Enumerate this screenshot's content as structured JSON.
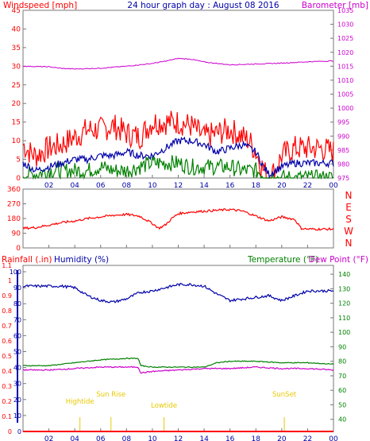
{
  "page_title": "24 hour graph day : August 08 2016",
  "colors": {
    "red": "#ff0000",
    "blue": "#0000aa",
    "green": "#008000",
    "magenta": "#cc00cc",
    "gold": "#e8c800",
    "frame": "#777777"
  },
  "time_ticks": [
    "02",
    "04",
    "06",
    "08",
    "10",
    "12",
    "14",
    "16",
    "18",
    "20",
    "22",
    "00"
  ],
  "chart_data": [
    {
      "type": "line",
      "xlim": [
        0,
        24
      ],
      "left_axis": {
        "label": "Windspeed [mph]",
        "ylim": [
          0,
          45
        ],
        "ticks": [
          "0",
          "5",
          "10",
          "15",
          "20",
          "25",
          "30",
          "35",
          "40",
          "45"
        ]
      },
      "right_axis": {
        "label": "Barometer [mb]",
        "ylim": [
          975,
          1035
        ],
        "ticks": [
          "975",
          "980",
          "985",
          "990",
          "995",
          "1000",
          "1005",
          "1010",
          "1015",
          "1020",
          "1025",
          "1030",
          "1035"
        ]
      },
      "series": [
        {
          "color": "#ff0000",
          "axis": "left",
          "jitter": 3.5,
          "floor": 0,
          "x": [
            0,
            0.5,
            1,
            2,
            3,
            4,
            5,
            6,
            7,
            8,
            9,
            10,
            11,
            12,
            13,
            14,
            15,
            16,
            17,
            17.5,
            18,
            18.6,
            19,
            19.5,
            20,
            21,
            22,
            23,
            24
          ],
          "y": [
            9,
            7,
            6,
            8,
            9,
            11,
            13,
            13,
            14,
            12,
            11,
            15,
            15,
            15,
            14,
            11,
            12,
            13,
            11,
            10,
            7,
            2,
            0,
            2,
            6,
            8,
            8,
            8,
            7
          ]
        },
        {
          "color": "#0000aa",
          "axis": "left",
          "jitter": 1.0,
          "floor": 0,
          "x": [
            0,
            1,
            2,
            3,
            4,
            5,
            6,
            7,
            8,
            9,
            10,
            11,
            12,
            13,
            14,
            15,
            16,
            17,
            18,
            18.6,
            19,
            20,
            21,
            22,
            23,
            24
          ],
          "y": [
            4,
            2,
            3,
            4,
            5,
            5,
            6,
            6,
            7,
            6,
            6,
            8,
            10,
            10,
            9,
            7,
            8,
            9,
            7,
            3,
            1,
            3,
            4,
            4,
            4,
            4
          ]
        },
        {
          "color": "#008000",
          "axis": "left",
          "jitter": 2.2,
          "floor": 0,
          "x": [
            0,
            1,
            2,
            3,
            4,
            5,
            6,
            7,
            8,
            9,
            10,
            11,
            12,
            13,
            14,
            15,
            16,
            17,
            18,
            19,
            20,
            21,
            22,
            23,
            24
          ],
          "y": [
            1,
            1,
            2,
            2,
            2,
            2,
            3,
            2,
            2,
            3,
            4,
            4,
            4,
            3,
            3,
            3,
            3,
            2,
            2,
            0,
            0,
            0,
            0,
            0,
            0
          ]
        },
        {
          "color": "#cc00cc",
          "axis": "right",
          "jitter": 0.15,
          "floor": 975,
          "x": [
            0,
            2,
            3,
            4,
            6,
            8,
            10,
            11,
            12,
            13,
            14,
            16,
            18,
            20,
            22,
            24
          ],
          "y": [
            1015.0,
            1014.8,
            1014.2,
            1014.0,
            1014.3,
            1015.0,
            1016.0,
            1016.8,
            1017.8,
            1017.5,
            1016.5,
            1015.5,
            1015.8,
            1016.1,
            1016.6,
            1016.9
          ]
        }
      ]
    },
    {
      "type": "line",
      "xlim": [
        0,
        24
      ],
      "left_axis": {
        "ylim": [
          0,
          360
        ],
        "ticks": [
          "0",
          "90",
          "180",
          "270",
          "360"
        ]
      },
      "right_axis": {
        "ticks": [
          "N",
          "W",
          "S",
          "E",
          "N"
        ]
      },
      "series": [
        {
          "color": "#ff0000",
          "axis": "left",
          "jitter": 7,
          "floor": 0,
          "x": [
            0,
            1,
            2,
            3,
            4,
            5,
            6,
            7,
            8,
            9,
            10,
            10.5,
            11,
            11.5,
            12,
            13,
            14,
            15,
            16,
            17,
            18,
            18.5,
            19,
            20,
            21,
            21.5,
            22,
            23,
            24
          ],
          "y": [
            120,
            125,
            140,
            155,
            165,
            180,
            190,
            200,
            205,
            195,
            150,
            120,
            140,
            180,
            210,
            220,
            225,
            230,
            235,
            225,
            195,
            180,
            165,
            190,
            175,
            120,
            115,
            115,
            115
          ]
        }
      ]
    },
    {
      "type": "line",
      "xlim": [
        0,
        24
      ],
      "left_axis_outer": {
        "label": "Rainfall (.in)",
        "ylim": [
          0,
          1
        ],
        "ticks": [
          "0",
          "0.1",
          "0.2",
          "0.3",
          "0.4",
          "0.5",
          "0.6",
          "0.7",
          "0.8",
          "0.9",
          "1",
          "1.1"
        ]
      },
      "left_axis_inner": {
        "label": "Humidity (%)",
        "ylim": [
          0,
          100
        ],
        "ticks": [
          "0",
          "10",
          "20",
          "30",
          "40",
          "50",
          "60",
          "70",
          "80",
          "90",
          "100"
        ]
      },
      "right_axis": {
        "label": "Temperature (°F)",
        "label2": "Dew Point (°F)",
        "ylim": [
          30,
          145
        ],
        "ticks": [
          "40",
          "50",
          "60",
          "70",
          "80",
          "90",
          "100",
          "110",
          "120",
          "130",
          "140"
        ]
      },
      "series": [
        {
          "color": "#0000aa",
          "axis": "inner",
          "jitter": 0.8,
          "floor": 0,
          "x": [
            0,
            3,
            4,
            5,
            6,
            7,
            8,
            9,
            10,
            11,
            12,
            13,
            14,
            15,
            16,
            18,
            19,
            20,
            21,
            22,
            24
          ],
          "y": [
            91,
            91,
            90,
            85,
            82,
            81,
            83,
            87,
            88,
            90,
            92,
            92,
            91,
            86,
            82,
            84,
            85,
            82,
            85,
            88,
            88
          ]
        },
        {
          "color": "#008000",
          "axis": "right",
          "jitter": 0.3,
          "floor": 30,
          "x": [
            0,
            2,
            4,
            6,
            8,
            8.9,
            9.1,
            10,
            12,
            14,
            15,
            16,
            18,
            20,
            22,
            24
          ],
          "y": [
            77,
            77,
            79,
            81,
            82,
            82,
            77,
            76,
            76,
            76,
            79,
            80,
            80,
            79,
            79,
            78
          ]
        },
        {
          "color": "#cc00cc",
          "axis": "right",
          "jitter": 0.4,
          "floor": 30,
          "x": [
            0,
            2,
            4,
            6,
            8,
            8.9,
            9.1,
            10,
            12,
            14,
            16,
            18,
            20,
            22,
            24
          ],
          "y": [
            74,
            74,
            75,
            76,
            76,
            76,
            72,
            73,
            74,
            75,
            75,
            76,
            75,
            75,
            74
          ]
        },
        {
          "color": "#ff0000",
          "axis": "outer",
          "jitter": 0,
          "floor": 0,
          "x": [
            0,
            24
          ],
          "y": [
            0,
            0
          ]
        }
      ],
      "events": [
        {
          "label": "Hightide",
          "x": 4.4
        },
        {
          "label": "Sun Rise",
          "x": 6.8
        },
        {
          "label": "Lowtide",
          "x": 10.9
        },
        {
          "label": "SunSet",
          "x": 20.2
        }
      ]
    }
  ]
}
